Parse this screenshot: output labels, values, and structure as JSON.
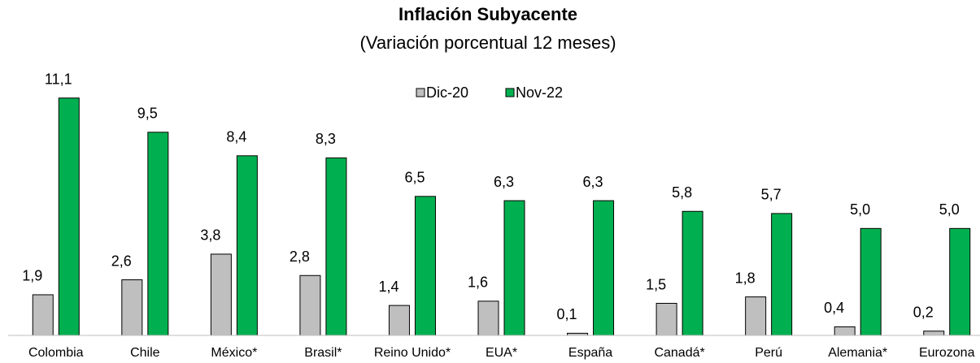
{
  "chart_data": {
    "type": "bar",
    "title": "Inflación Subyacente",
    "subtitle": "(Variación porcentual 12 meses)",
    "categories": [
      "Colombia",
      "Chile",
      "México*",
      "Brasil*",
      "Reino Unido*",
      "EUA*",
      "España",
      "Canadá*",
      "Perú",
      "Alemania*",
      "Eurozona"
    ],
    "series": [
      {
        "name": "Dic-20",
        "color": "#bfbfbf",
        "values": [
          1.9,
          2.6,
          3.8,
          2.8,
          1.4,
          1.6,
          0.1,
          1.5,
          1.8,
          0.4,
          0.2
        ],
        "value_labels": [
          "1,9",
          "2,6",
          "3,8",
          "2,8",
          "1,4",
          "1,6",
          "0,1",
          "1,5",
          "1,8",
          "0,4",
          "0,2"
        ]
      },
      {
        "name": "Nov-22",
        "color": "#00b050",
        "values": [
          11.1,
          9.5,
          8.4,
          8.3,
          6.5,
          6.3,
          6.3,
          5.8,
          5.7,
          5.0,
          5.0
        ],
        "value_labels": [
          "11,1",
          "9,5",
          "8,4",
          "8,3",
          "6,5",
          "6,3",
          "6,3",
          "5,8",
          "5,7",
          "5,0",
          "5,0"
        ]
      }
    ],
    "ylim": [
      0,
      12
    ],
    "legend": "top"
  }
}
